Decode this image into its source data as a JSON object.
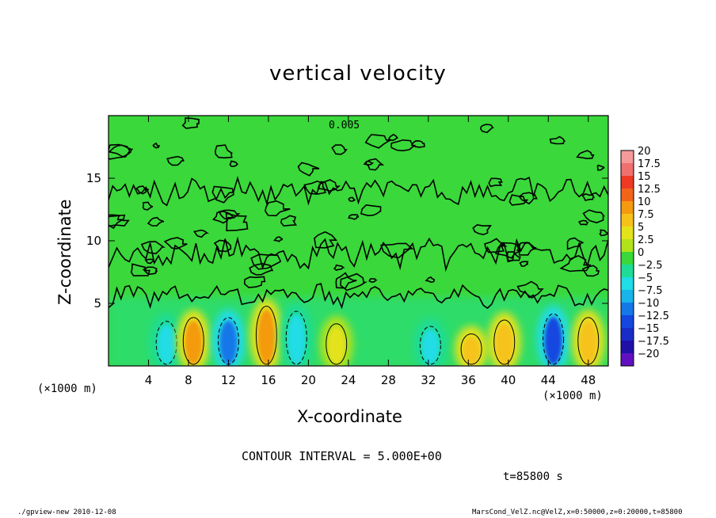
{
  "chart_data": {
    "type": "heatmap",
    "title": "vertical velocity",
    "xlabel": "X-coordinate",
    "ylabel": "Z-coordinate",
    "x_unit": "(×1000 m)",
    "x_unit_right": "(×1000 m)",
    "xlim": [
      0,
      50
    ],
    "ylim": [
      0,
      20
    ],
    "x_ticks": [
      4,
      8,
      12,
      16,
      20,
      24,
      28,
      32,
      36,
      40,
      44,
      48
    ],
    "y_ticks": [
      5,
      10,
      15
    ],
    "contour_label": "0.005",
    "colorbar": {
      "levels": [
        "20",
        "17.5",
        "15",
        "12.5",
        "10",
        "7.5",
        "5",
        "2.5",
        "0",
        "−2.5",
        "−5",
        "−7.5",
        "−10",
        "−12.5",
        "−15",
        "−17.5",
        "−20"
      ],
      "colors": [
        "#f59a9a",
        "#f07070",
        "#ee3a24",
        "#f2641a",
        "#f49a10",
        "#f6c21a",
        "#e4e21a",
        "#b2e21a",
        "#3ad83a",
        "#1edc96",
        "#20dce6",
        "#18b4ea",
        "#1478e8",
        "#1446e0",
        "#1a2cc8",
        "#2010a8",
        "#6010c0"
      ]
    },
    "features": [
      {
        "x": 5.8,
        "z_top": 4.2,
        "value": -5
      },
      {
        "x": 8.5,
        "z_top": 4.5,
        "value": 10
      },
      {
        "x": 12.0,
        "z_top": 4.5,
        "value": -10
      },
      {
        "x": 15.8,
        "z_top": 5.4,
        "value": 10
      },
      {
        "x": 18.8,
        "z_top": 5.0,
        "value": -5
      },
      {
        "x": 22.8,
        "z_top": 4.0,
        "value": 5
      },
      {
        "x": 32.2,
        "z_top": 3.8,
        "value": -5
      },
      {
        "x": 36.3,
        "z_top": 3.2,
        "value": 7.5
      },
      {
        "x": 39.6,
        "z_top": 4.3,
        "value": 7.5
      },
      {
        "x": 44.5,
        "z_top": 4.8,
        "value": -12.5
      },
      {
        "x": 48.0,
        "z_top": 4.5,
        "value": 7.5
      }
    ],
    "contour_interval_text": "CONTOUR INTERVAL = 5.000E+00",
    "time_text": "t=85800  s"
  },
  "footer_left": "./gpview-new   2010-12-08",
  "footer_right": "MarsCond_VelZ.nc@VelZ,x=0:50000,z=0:20000,t=85800"
}
